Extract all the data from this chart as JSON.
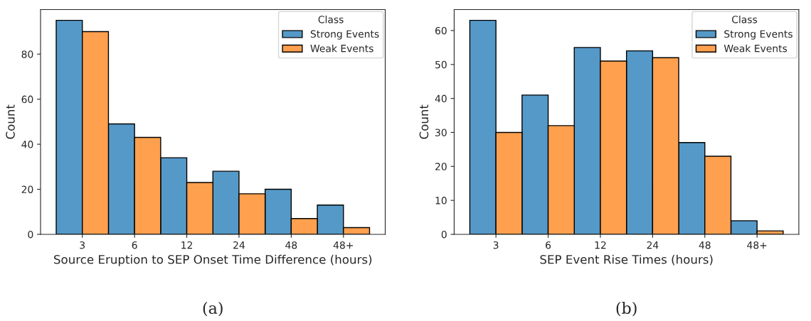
{
  "chart_data": [
    {
      "type": "bar",
      "xlabel": "Source Eruption to SEP Onset Time Difference (hours)",
      "ylabel": "Count",
      "legend_title": "Class",
      "legend": "top right",
      "categories": [
        "3",
        "6",
        "12",
        "24",
        "48",
        "48+"
      ],
      "ylim": [
        0,
        99.75
      ],
      "yticks": [
        0,
        20,
        40,
        60,
        80
      ],
      "annotations": [
        "(a)"
      ],
      "series": [
        {
          "name": "Strong Events",
          "color": "#5599c8",
          "values": [
            95,
            49,
            34,
            28,
            20,
            13
          ]
        },
        {
          "name": "Weak Events",
          "color": "#ffa04f",
          "values": [
            90,
            43,
            23,
            18,
            7,
            3
          ]
        }
      ]
    },
    {
      "type": "bar",
      "xlabel": "SEP Event Rise Times (hours)",
      "ylabel": "Count",
      "legend_title": "Class",
      "legend": "top right",
      "categories": [
        "3",
        "6",
        "12",
        "24",
        "48",
        "48+"
      ],
      "ylim": [
        0,
        66.15
      ],
      "yticks": [
        0,
        10,
        20,
        30,
        40,
        50,
        60
      ],
      "annotations": [
        "(b)"
      ],
      "series": [
        {
          "name": "Strong Events",
          "color": "#5599c8",
          "values": [
            63,
            41,
            55,
            54,
            27,
            4
          ]
        },
        {
          "name": "Weak Events",
          "color": "#ffa04f",
          "values": [
            30,
            32,
            51,
            52,
            23,
            1
          ]
        }
      ]
    }
  ]
}
